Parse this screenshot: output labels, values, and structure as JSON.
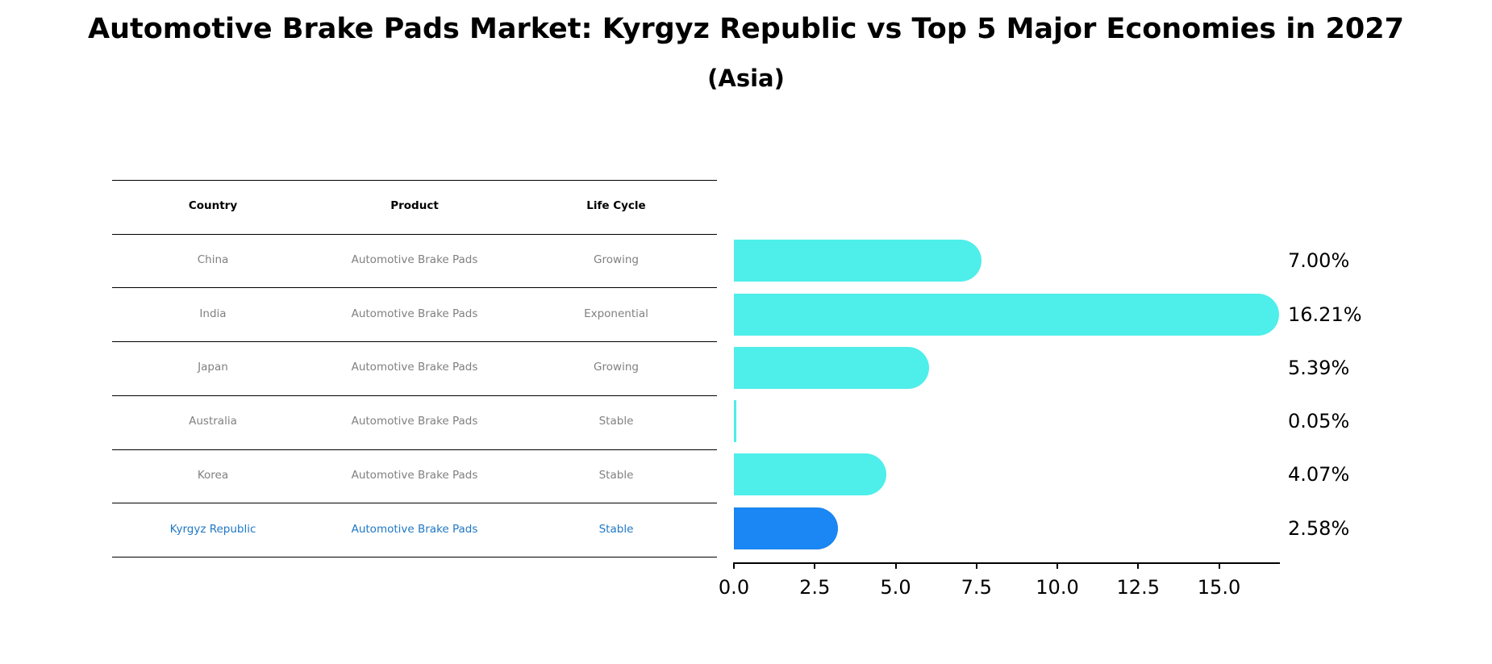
{
  "title": "Automotive Brake Pads Market: Kyrgyz Republic vs Top 5 Major Economies in 2027",
  "subtitle": "(Asia)",
  "table": {
    "headers": [
      "Country",
      "Product",
      "Life Cycle"
    ],
    "rows": [
      {
        "country": "China",
        "product": "Automotive Brake Pads",
        "life_cycle": "Growing"
      },
      {
        "country": "India",
        "product": "Automotive Brake Pads",
        "life_cycle": "Exponential"
      },
      {
        "country": "Japan",
        "product": "Automotive Brake Pads",
        "life_cycle": "Growing"
      },
      {
        "country": "Australia",
        "product": "Automotive Brake Pads",
        "life_cycle": "Stable"
      },
      {
        "country": "Korea",
        "product": "Automotive Brake Pads",
        "life_cycle": "Stable"
      },
      {
        "country": "Kyrgyz Republic",
        "product": "Automotive Brake Pads",
        "life_cycle": "Stable"
      }
    ]
  },
  "colors": {
    "bar": "#4eeeea",
    "highlight_bar": "#1a87f5",
    "highlight_text": "#1f77c4",
    "muted_text": "#808080"
  },
  "chart_data": {
    "type": "bar",
    "orientation": "horizontal",
    "title": "Automotive Brake Pads Market: Kyrgyz Republic vs Top 5 Major Economies in 2027",
    "subtitle": "(Asia)",
    "categories": [
      "China",
      "India",
      "Japan",
      "Australia",
      "Korea",
      "Kyrgyz Republic"
    ],
    "values": [
      7.0,
      16.21,
      5.39,
      0.05,
      4.07,
      2.58
    ],
    "value_labels": [
      "7.00%",
      "16.21%",
      "5.39%",
      "0.05%",
      "4.07%",
      "2.58%"
    ],
    "highlight": "Kyrgyz Republic",
    "xlabel": "",
    "ylabel": "",
    "xlim": [
      0,
      17
    ],
    "xticks": [
      0.0,
      2.5,
      5.0,
      7.5,
      10.0,
      12.5,
      15.0
    ],
    "xtick_labels": [
      "0.0",
      "2.5",
      "5.0",
      "7.5",
      "10.0",
      "12.5",
      "15.0"
    ],
    "grid": false,
    "legend": null
  }
}
